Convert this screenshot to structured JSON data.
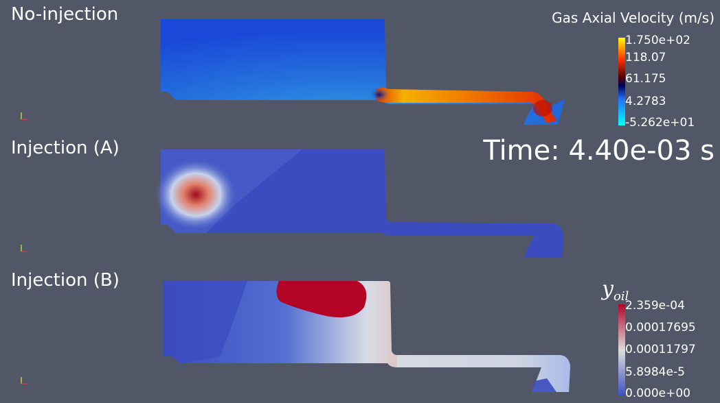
{
  "panels": [
    {
      "label": "No-injection"
    },
    {
      "label": "Injection (A)"
    },
    {
      "label": "Injection (B)"
    }
  ],
  "velocity_legend": {
    "title": "Gas Axial Velocity (m/s)",
    "ticks": [
      "1.750e+02",
      "118.07",
      "61.175",
      "4.2783",
      "-5.262e+01"
    ]
  },
  "time": {
    "label": "Time: 4.40e-03 s"
  },
  "oil_legend": {
    "title_base": "y",
    "title_sub": "oil",
    "ticks": [
      "2.359e-04",
      "0.00017695",
      "0.00011797",
      "5.8984e-5",
      "0.000e+00"
    ]
  },
  "colors": {
    "background": "#525768",
    "cold_blue": "#3b4cc0",
    "warm_red": "#b40426"
  }
}
